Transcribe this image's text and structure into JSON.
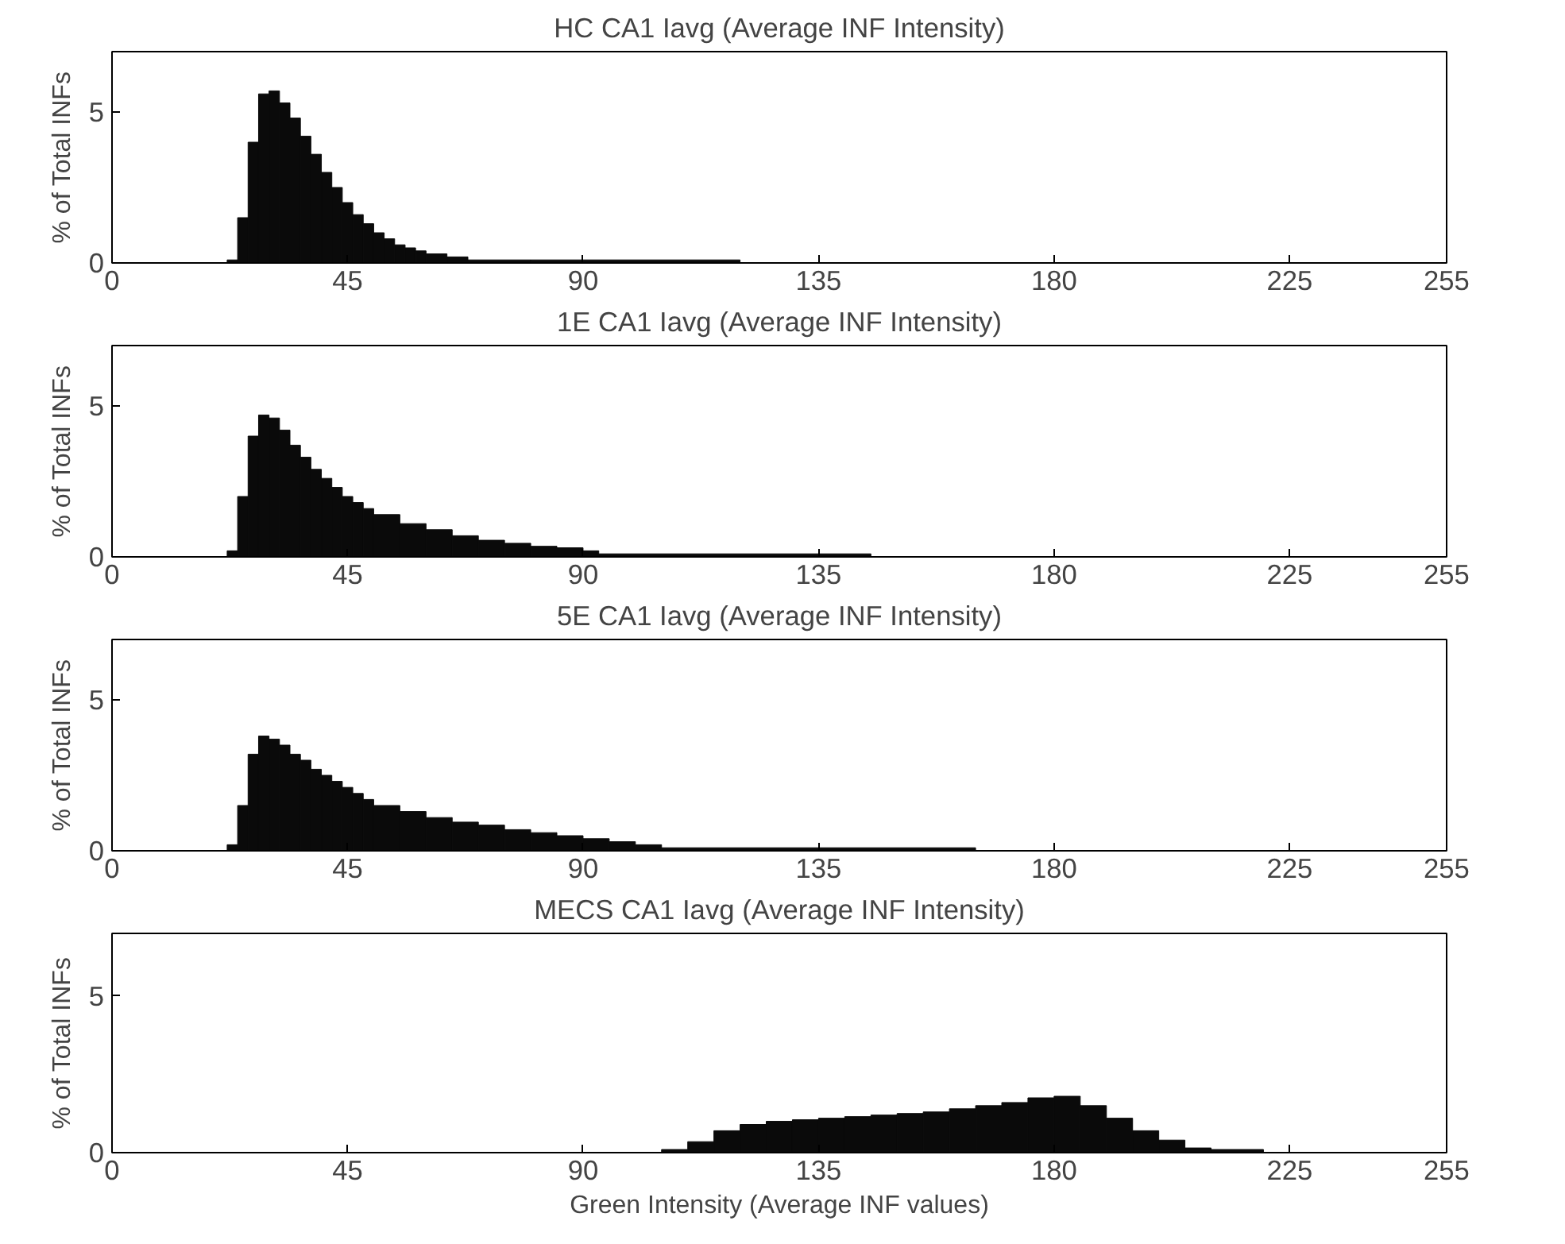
{
  "chart_data": [
    {
      "type": "histogram",
      "title": "HC CA1 Iavg (Average INF Intensity)",
      "ylabel": "% of Total INFs",
      "color": "#0a0a0a",
      "xlim": [
        0,
        255
      ],
      "xticks": [
        0,
        45,
        90,
        135,
        180,
        225,
        255
      ],
      "ylim": [
        0,
        7
      ],
      "yticks": [
        0,
        5
      ],
      "grid": false,
      "bins": [
        22,
        24,
        26,
        28,
        30,
        32,
        34,
        36,
        38,
        40,
        42,
        44,
        46,
        48,
        50,
        52,
        54,
        56,
        58,
        60,
        64,
        68,
        80,
        120
      ],
      "values": [
        0.1,
        1.5,
        4.0,
        5.6,
        5.7,
        5.3,
        4.8,
        4.2,
        3.6,
        3.0,
        2.5,
        2.0,
        1.6,
        1.3,
        1.0,
        0.8,
        0.6,
        0.5,
        0.4,
        0.3,
        0.2,
        0.1,
        0.1
      ]
    },
    {
      "type": "histogram",
      "title": "1E CA1 Iavg (Average INF Intensity)",
      "ylabel": "% of Total INFs",
      "color": "#0a0a0a",
      "xlim": [
        0,
        255
      ],
      "xticks": [
        0,
        45,
        90,
        135,
        180,
        225,
        255
      ],
      "ylim": [
        0,
        7
      ],
      "yticks": [
        0,
        5
      ],
      "grid": false,
      "bins": [
        22,
        24,
        26,
        28,
        30,
        32,
        34,
        36,
        38,
        40,
        42,
        44,
        46,
        48,
        50,
        55,
        60,
        65,
        70,
        75,
        80,
        85,
        90,
        93,
        145
      ],
      "values": [
        0.2,
        2.0,
        4.0,
        4.7,
        4.6,
        4.2,
        3.7,
        3.3,
        2.9,
        2.6,
        2.3,
        2.0,
        1.8,
        1.6,
        1.4,
        1.1,
        0.9,
        0.7,
        0.55,
        0.45,
        0.35,
        0.3,
        0.2,
        0.1
      ]
    },
    {
      "type": "histogram",
      "title": "5E CA1 Iavg (Average INF Intensity)",
      "ylabel": "% of Total INFs",
      "color": "#0a0a0a",
      "xlim": [
        0,
        255
      ],
      "xticks": [
        0,
        45,
        90,
        135,
        180,
        225,
        255
      ],
      "ylim": [
        0,
        7
      ],
      "yticks": [
        0,
        5
      ],
      "grid": false,
      "bins": [
        22,
        24,
        26,
        28,
        30,
        32,
        34,
        36,
        38,
        40,
        42,
        44,
        46,
        48,
        50,
        55,
        60,
        65,
        70,
        75,
        80,
        85,
        90,
        95,
        100,
        105,
        165
      ],
      "values": [
        0.2,
        1.5,
        3.2,
        3.8,
        3.7,
        3.5,
        3.2,
        3.0,
        2.7,
        2.5,
        2.3,
        2.1,
        1.9,
        1.7,
        1.5,
        1.3,
        1.1,
        0.95,
        0.85,
        0.7,
        0.6,
        0.5,
        0.4,
        0.3,
        0.2,
        0.1
      ]
    },
    {
      "type": "histogram",
      "title": "MECS CA1 Iavg (Average INF Intensity)",
      "ylabel": "% of Total INFs",
      "xlabel": "Green Intensity (Average INF values)",
      "color": "#0a0a0a",
      "xlim": [
        0,
        255
      ],
      "xticks": [
        0,
        45,
        90,
        135,
        180,
        225,
        255
      ],
      "ylim": [
        0,
        7
      ],
      "yticks": [
        0,
        5
      ],
      "grid": false,
      "bins": [
        105,
        110,
        115,
        120,
        125,
        130,
        135,
        140,
        145,
        150,
        155,
        160,
        165,
        170,
        175,
        180,
        185,
        190,
        195,
        200,
        205,
        210,
        220
      ],
      "values": [
        0.1,
        0.35,
        0.7,
        0.9,
        1.0,
        1.05,
        1.1,
        1.15,
        1.2,
        1.25,
        1.3,
        1.4,
        1.5,
        1.6,
        1.75,
        1.8,
        1.5,
        1.1,
        0.7,
        0.4,
        0.15,
        0.1
      ]
    }
  ]
}
